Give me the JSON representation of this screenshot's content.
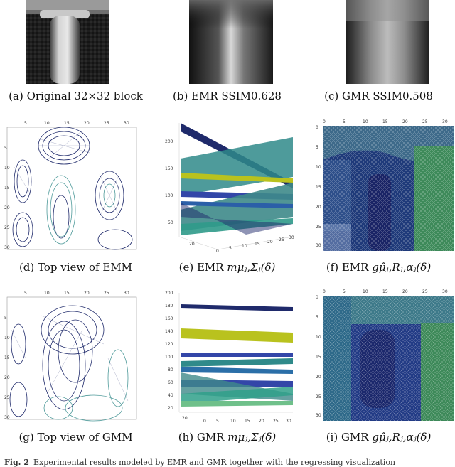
{
  "captions": {
    "a": "(a) Original 32×32 block",
    "b": "(b) EMR SSIM0.628",
    "c": "(c) GMR SSIM0.508",
    "d": "(d) Top view of EMM",
    "e_prefix": "(e) EMR ",
    "e_math": "mμⱼ,Σⱼ(δ)",
    "f_prefix": "(f) EMR ",
    "f_math": "gμ̂ⱼ,Rⱼ,αⱼ(δ)",
    "g": "(g) Top view of GMM",
    "h_prefix": "(h) GMR ",
    "h_math": "mμⱼ,Σⱼ(δ)",
    "i_prefix": "(i) GMR ",
    "i_math": "gμ̂ⱼ,Rⱼ,αⱼ(δ)"
  },
  "footer": {
    "label": "Fig. 2",
    "text": "Experimental results modeled by EMR and GMR together with the regressing visualization"
  },
  "ticks": {
    "x_top": [
      "5",
      "10",
      "15",
      "20",
      "25",
      "30"
    ],
    "y_left": [
      "5",
      "10",
      "15",
      "20",
      "25",
      "30"
    ],
    "f_x": [
      "0",
      "5",
      "10",
      "15",
      "20",
      "25",
      "30"
    ],
    "f_y": [
      "0",
      "5",
      "10",
      "15",
      "20",
      "25",
      "30"
    ],
    "e_z": [
      "200",
      "150",
      "100",
      "50"
    ],
    "e_base": [
      "20",
      "0",
      "5",
      "10",
      "15",
      "20",
      "25",
      "30"
    ],
    "h_z": [
      "200",
      "180",
      "160",
      "140",
      "120",
      "100",
      "80",
      "60",
      "40",
      "20"
    ],
    "h_base": [
      "20",
      "0",
      "5",
      "10",
      "15",
      "20",
      "25",
      "30"
    ]
  },
  "colors": {
    "navy": "#1f2a6b",
    "teal": "#2f8a8a",
    "yellow": "#b9c21e",
    "green": "#3e8a5a",
    "blue": "#3346a8",
    "light_teal": "#8fd0c8"
  }
}
